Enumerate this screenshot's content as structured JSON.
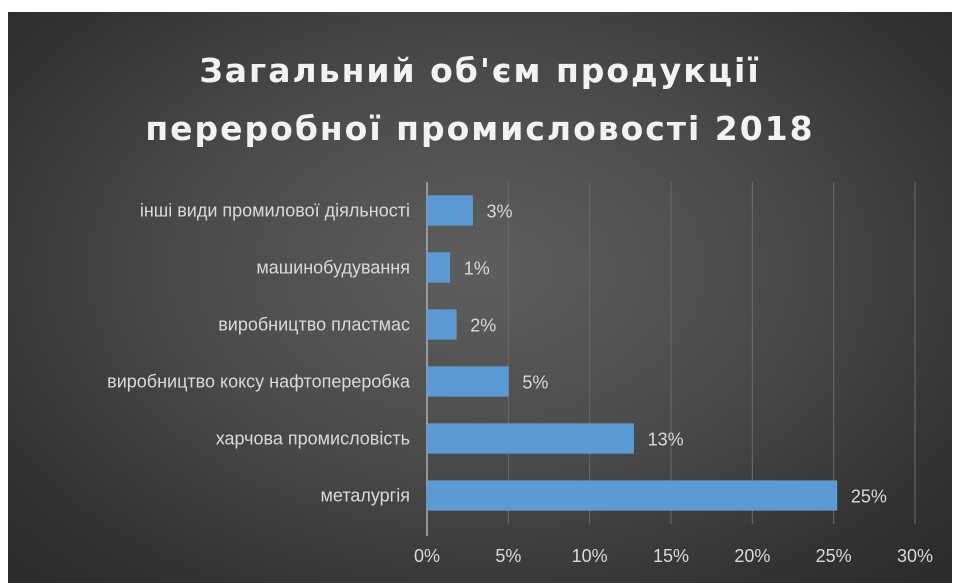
{
  "chart_data": {
    "type": "bar",
    "orientation": "horizontal",
    "title_lines": [
      "Загальний об'єм продукції",
      "переробної промисловості 2018"
    ],
    "categories": [
      "інші види промилової діяльності",
      "машинобудування",
      "виробництво пластмас",
      "виробництво коксу нафтопереробка",
      "харчова промисловість",
      "металургія"
    ],
    "values": [
      2.8,
      1.4,
      1.8,
      5.0,
      12.7,
      25.2
    ],
    "data_labels": [
      "3%",
      "1%",
      "2%",
      "5%",
      "13%",
      "25%"
    ],
    "xlim": [
      0,
      30
    ],
    "x_ticks": [
      0,
      5,
      10,
      15,
      20,
      25,
      30
    ],
    "x_tick_labels": [
      "0%",
      "5%",
      "10%",
      "15%",
      "20%",
      "25%",
      "30%"
    ],
    "grid": true,
    "legend": "none",
    "bar_color": "#5b9bd5"
  }
}
